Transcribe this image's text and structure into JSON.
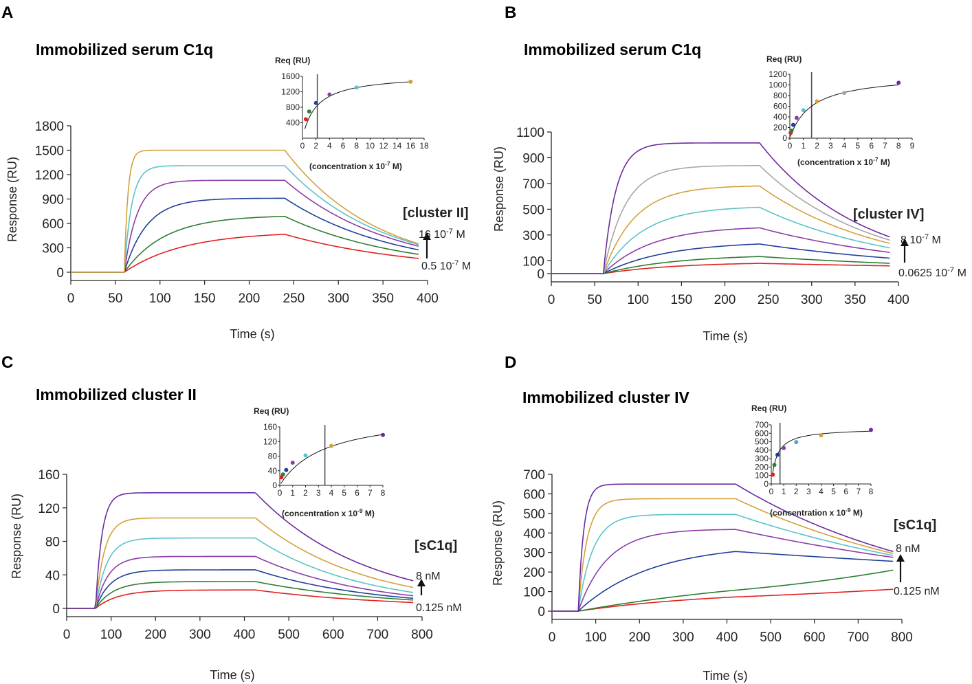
{
  "colors": {
    "red": "#e02020",
    "green": "#2e7d32",
    "blue": "#1f3f99",
    "purple": "#8a3da6",
    "cyan": "#58c4c8",
    "gold": "#d4a03a",
    "gray": "#a6a6a6",
    "darkpurple": "#6a2a9e",
    "lightblue": "#4fa3d8",
    "axis": "#222222",
    "fitline": "#111111",
    "vline": "#555555"
  },
  "chart_data": [
    {
      "panel": "A",
      "title": "Immobilized serum C1q",
      "type": "line",
      "xlabel": "Time (s)",
      "ylabel": "Response (RU)",
      "xlim": [
        0,
        400
      ],
      "ylim": [
        0,
        1800
      ],
      "xticks": [
        0,
        50,
        100,
        150,
        200,
        250,
        300,
        350,
        400
      ],
      "yticks": [
        0,
        300,
        600,
        900,
        1200,
        1500,
        1800
      ],
      "injection_start": 60,
      "injection_end": 240,
      "ligand_label": "[cluster II]",
      "conc_high": "16 10-7 M",
      "conc_low": "0.5 10-7 M",
      "series": [
        {
          "name": "0.5",
          "color": "red",
          "plateau": 500,
          "end": 170,
          "kon": 0.015,
          "koff": 0.009
        },
        {
          "name": "1",
          "color": "green",
          "plateau": 700,
          "end": 220,
          "kon": 0.022,
          "koff": 0.0115
        },
        {
          "name": "2",
          "color": "blue",
          "plateau": 910,
          "end": 275,
          "kon": 0.04,
          "koff": 0.013
        },
        {
          "name": "4",
          "color": "purple",
          "plateau": 1130,
          "end": 320,
          "kon": 0.07,
          "koff": 0.014
        },
        {
          "name": "8",
          "color": "cyan",
          "plateau": 1310,
          "end": 340,
          "kon": 0.12,
          "koff": 0.015
        },
        {
          "name": "16",
          "color": "gold",
          "plateau": 1500,
          "end": 350,
          "kon": 0.25,
          "koff": 0.016
        }
      ],
      "inset": {
        "title": "Req (RU)",
        "xlabel": "(concentration x 10-7 M)",
        "xlim": [
          0,
          18
        ],
        "ylim": [
          0,
          1600
        ],
        "xticks": [
          0,
          2,
          4,
          6,
          8,
          10,
          12,
          14,
          16,
          18
        ],
        "yticks": [
          400,
          800,
          1200,
          1600
        ],
        "vline": 2.2,
        "rmax": 1650,
        "kd": 2.1,
        "points": [
          {
            "x": 0.5,
            "y": 490,
            "color": "red"
          },
          {
            "x": 1,
            "y": 690,
            "color": "green"
          },
          {
            "x": 2,
            "y": 910,
            "color": "blue"
          },
          {
            "x": 4,
            "y": 1130,
            "color": "purple"
          },
          {
            "x": 8,
            "y": 1310,
            "color": "cyan"
          },
          {
            "x": 16,
            "y": 1460,
            "color": "gold"
          }
        ]
      }
    },
    {
      "panel": "B",
      "title": "Immobilized serum C1q",
      "type": "line",
      "xlabel": "Time (s)",
      "ylabel": "Response (RU)",
      "xlim": [
        0,
        400
      ],
      "ylim": [
        0,
        1100
      ],
      "xticks": [
        0,
        50,
        100,
        150,
        200,
        250,
        300,
        350,
        400
      ],
      "yticks": [
        0,
        100,
        300,
        500,
        700,
        900,
        1100
      ],
      "injection_start": 60,
      "injection_end": 240,
      "ligand_label": "[cluster IV]",
      "conc_high": "8 10-7 M",
      "conc_low": "0.0625 10-7 M",
      "series": [
        {
          "name": "0.0625",
          "color": "red",
          "plateau": 90,
          "end": 60,
          "kon": 0.012,
          "koff": 0.0025
        },
        {
          "name": "0.125",
          "color": "green",
          "plateau": 150,
          "end": 80,
          "kon": 0.012,
          "koff": 0.004
        },
        {
          "name": "0.25",
          "color": "blue",
          "plateau": 250,
          "end": 120,
          "kon": 0.014,
          "koff": 0.005
        },
        {
          "name": "0.5",
          "color": "purple",
          "plateau": 370,
          "end": 165,
          "kon": 0.018,
          "koff": 0.0055
        },
        {
          "name": "1",
          "color": "cyan",
          "plateau": 525,
          "end": 200,
          "kon": 0.022,
          "koff": 0.0065
        },
        {
          "name": "2",
          "color": "gold",
          "plateau": 685,
          "end": 235,
          "kon": 0.028,
          "koff": 0.007
        },
        {
          "name": "4",
          "color": "gray",
          "plateau": 840,
          "end": 260,
          "kon": 0.04,
          "koff": 0.0075
        },
        {
          "name": "8",
          "color": "darkpurple",
          "plateau": 1015,
          "end": 285,
          "kon": 0.07,
          "koff": 0.008
        }
      ],
      "inset": {
        "title": "Req (RU)",
        "xlabel": "(concentration x 10-7 M)",
        "xlim": [
          0,
          9
        ],
        "ylim": [
          0,
          1200
        ],
        "xticks": [
          0,
          1,
          2,
          3,
          4,
          5,
          6,
          7,
          8,
          9
        ],
        "yticks": [
          0,
          200,
          400,
          600,
          800,
          1000,
          1200
        ],
        "vline": 1.6,
        "rmax": 1200,
        "kd": 1.6,
        "points": [
          {
            "x": 0.0625,
            "y": 100,
            "color": "red"
          },
          {
            "x": 0.125,
            "y": 140,
            "color": "green"
          },
          {
            "x": 0.25,
            "y": 250,
            "color": "blue"
          },
          {
            "x": 0.5,
            "y": 380,
            "color": "purple"
          },
          {
            "x": 1,
            "y": 525,
            "color": "cyan"
          },
          {
            "x": 2,
            "y": 690,
            "color": "gold"
          },
          {
            "x": 4,
            "y": 850,
            "color": "gray"
          },
          {
            "x": 8,
            "y": 1040,
            "color": "darkpurple"
          }
        ]
      }
    },
    {
      "panel": "C",
      "title": "Immobilized cluster II",
      "type": "line",
      "xlabel": "Time (s)",
      "ylabel": "Response (RU)",
      "xlim": [
        0,
        800
      ],
      "ylim": [
        0,
        160
      ],
      "xticks": [
        0,
        100,
        200,
        300,
        400,
        500,
        600,
        700,
        800
      ],
      "yticks": [
        0,
        40,
        80,
        120,
        160
      ],
      "injection_start": 65,
      "injection_end": 425,
      "ligand_label": "[sC1q]",
      "conc_high": "8 nM",
      "conc_low": "0.125 nM",
      "series": [
        {
          "name": "0.125",
          "color": "red",
          "plateau": 22,
          "end": 7,
          "kon": 0.02,
          "koff": 0.003
        },
        {
          "name": "0.25",
          "color": "green",
          "plateau": 32,
          "end": 10,
          "kon": 0.025,
          "koff": 0.004
        },
        {
          "name": "0.5",
          "color": "blue",
          "plateau": 46,
          "end": 12,
          "kon": 0.03,
          "koff": 0.005
        },
        {
          "name": "1",
          "color": "purple",
          "plateau": 62,
          "end": 15,
          "kon": 0.035,
          "koff": 0.0055
        },
        {
          "name": "2",
          "color": "cyan",
          "plateau": 84,
          "end": 19,
          "kon": 0.04,
          "koff": 0.006
        },
        {
          "name": "4",
          "color": "gold",
          "plateau": 108,
          "end": 25,
          "kon": 0.05,
          "koff": 0.0065
        },
        {
          "name": "8",
          "color": "darkpurple",
          "plateau": 138,
          "end": 33,
          "kon": 0.07,
          "koff": 0.007
        }
      ],
      "inset": {
        "title": "Req (RU)",
        "xlabel": "(concentration x 10-9 M)",
        "xlim": [
          0,
          8
        ],
        "ylim": [
          0,
          160
        ],
        "xticks": [
          0,
          1,
          2,
          3,
          4,
          5,
          6,
          7,
          8
        ],
        "yticks": [
          0,
          40,
          80,
          120,
          160
        ],
        "vline": 3.5,
        "rmax": 200,
        "kd": 3.5,
        "points": [
          {
            "x": 0.125,
            "y": 22,
            "color": "red"
          },
          {
            "x": 0.25,
            "y": 30,
            "color": "green"
          },
          {
            "x": 0.5,
            "y": 42,
            "color": "blue"
          },
          {
            "x": 1,
            "y": 62,
            "color": "purple"
          },
          {
            "x": 2,
            "y": 82,
            "color": "cyan"
          },
          {
            "x": 4,
            "y": 108,
            "color": "gold"
          },
          {
            "x": 8,
            "y": 138,
            "color": "darkpurple"
          }
        ]
      }
    },
    {
      "panel": "D",
      "title": "Immobilized cluster IV",
      "type": "line",
      "xlabel": "Time (s)",
      "ylabel": "Response (RU)",
      "xlim": [
        0,
        800
      ],
      "ylim": [
        0,
        700
      ],
      "xticks": [
        0,
        100,
        200,
        300,
        400,
        500,
        600,
        700,
        800
      ],
      "yticks": [
        0,
        100,
        200,
        300,
        400,
        500,
        600,
        700
      ],
      "injection_start": 60,
      "injection_end": 420,
      "ligand_label": "[sC1q]",
      "conc_high": "8 nM",
      "conc_low": "0.125 nM",
      "series": [
        {
          "name": "0.125",
          "color": "red",
          "plateau": 110,
          "end": 112,
          "kon": 0.003,
          "koff": -3e-05
        },
        {
          "name": "0.25",
          "color": "green",
          "plateau": 225,
          "end": 210,
          "kon": 0.0018,
          "koff": 0.0002
        },
        {
          "name": "0.5",
          "color": "blue",
          "plateau": 345,
          "end": 255,
          "kon": 0.006,
          "koff": 0.0008
        },
        {
          "name": "1",
          "color": "purple",
          "plateau": 420,
          "end": 275,
          "kon": 0.015,
          "koff": 0.0012
        },
        {
          "name": "2",
          "color": "cyan",
          "plateau": 495,
          "end": 285,
          "kon": 0.03,
          "koff": 0.0014
        },
        {
          "name": "4",
          "color": "gold",
          "plateau": 575,
          "end": 295,
          "kon": 0.05,
          "koff": 0.0015
        },
        {
          "name": "8",
          "color": "darkpurple",
          "plateau": 650,
          "end": 305,
          "kon": 0.08,
          "koff": 0.0016
        }
      ],
      "inset": {
        "title": "Req (RU)",
        "xlabel": "(concentration x 10-9 M)",
        "xlim": [
          0,
          8
        ],
        "ylim": [
          0,
          700
        ],
        "xticks": [
          0,
          1,
          2,
          3,
          4,
          5,
          6,
          7,
          8
        ],
        "yticks": [
          0,
          100,
          200,
          300,
          400,
          500,
          600,
          700
        ],
        "vline": 0.7,
        "rmax": 660,
        "kd": 0.45,
        "points": [
          {
            "x": 0.125,
            "y": 110,
            "color": "red"
          },
          {
            "x": 0.25,
            "y": 225,
            "color": "green"
          },
          {
            "x": 0.5,
            "y": 345,
            "color": "blue"
          },
          {
            "x": 1,
            "y": 425,
            "color": "purple"
          },
          {
            "x": 2,
            "y": 495,
            "color": "lightblue"
          },
          {
            "x": 4,
            "y": 575,
            "color": "gold"
          },
          {
            "x": 8,
            "y": 640,
            "color": "darkpurple"
          }
        ]
      }
    }
  ]
}
